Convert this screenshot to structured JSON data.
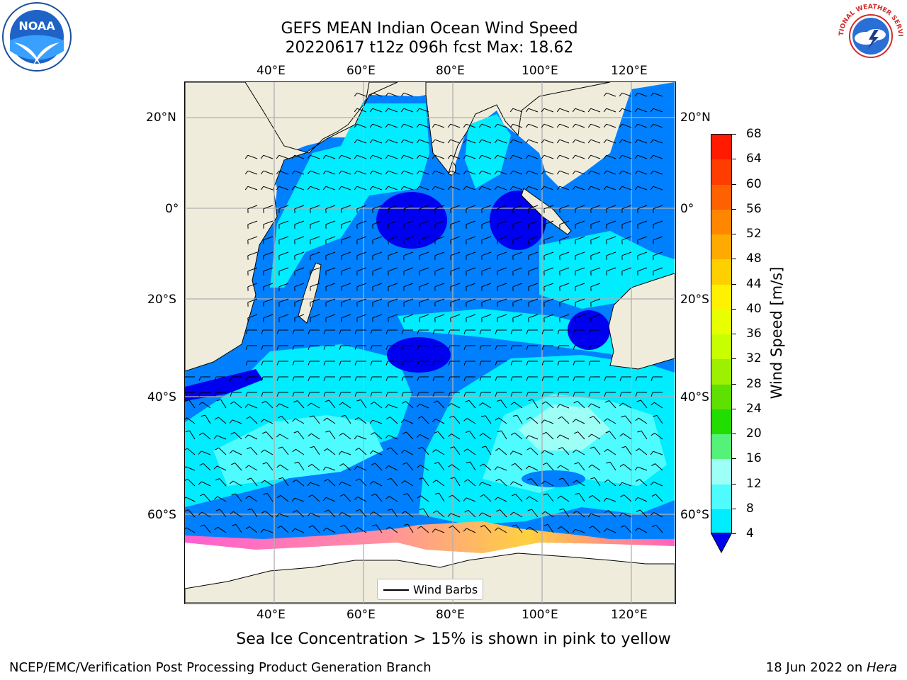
{
  "title": {
    "line1": "GEFS MEAN Indian Ocean Wind Speed",
    "line2": "20220617 t12z 096h fcst   Max: 18.62"
  },
  "logos": {
    "left": "NOAA",
    "right": "NATIONAL WEATHER SERVICE"
  },
  "axes": {
    "lon_ticks": [
      "40°E",
      "60°E",
      "80°E",
      "100°E",
      "120°E"
    ],
    "lat_ticks": [
      "20°N",
      "0°",
      "20°S",
      "40°S",
      "60°S"
    ]
  },
  "legend": {
    "label": "Wind Barbs"
  },
  "colorbar": {
    "label": "Wind Speed [m/s]",
    "ticks": [
      "68",
      "64",
      "60",
      "56",
      "52",
      "48",
      "44",
      "40",
      "36",
      "32",
      "28",
      "24",
      "20",
      "16",
      "12",
      "8",
      "4"
    ],
    "colors": [
      "#ff1a00",
      "#ff3d00",
      "#ff6000",
      "#ff8700",
      "#ffaa00",
      "#ffd000",
      "#fff200",
      "#e8ff00",
      "#c8ff00",
      "#9cf000",
      "#5ee000",
      "#22dd00",
      "#55f27a",
      "#9dfff5",
      "#4efcff",
      "#00ecff",
      "#0080ff"
    ],
    "under_color": "#0000f0"
  },
  "caption": "Sea Ice Concentration > 15% is shown in pink to yellow",
  "footer": {
    "left": "NCEP/EMC/Verification Post Processing Product Generation Branch",
    "right_prefix": "18 Jun 2022 on ",
    "right_host": "Hera"
  }
}
